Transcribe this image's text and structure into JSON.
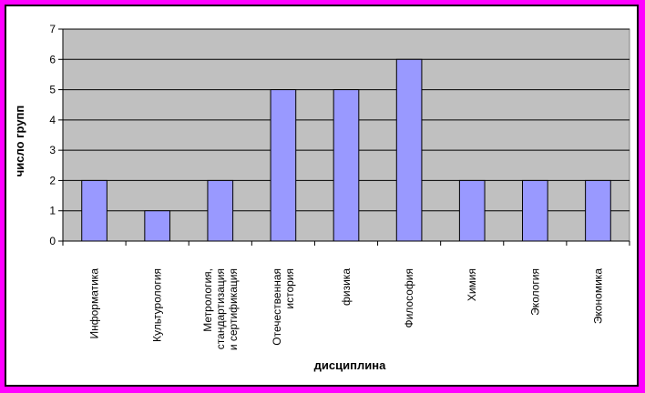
{
  "colors": {
    "outer_border": "#ff00ff",
    "plot_background": "#c0c0c0",
    "bar_fill": "#9999ff",
    "bar_stroke": "#000000"
  },
  "chart_data": {
    "type": "bar",
    "title": "",
    "xlabel": "дисциплина",
    "ylabel": "число групп",
    "ylim": [
      0,
      7
    ],
    "yticks": [
      0,
      1,
      2,
      3,
      4,
      5,
      6,
      7
    ],
    "grid": true,
    "legend": "none",
    "categories": [
      [
        "Информатика"
      ],
      [
        "Культурология"
      ],
      [
        "Метрология,",
        "стандартизация",
        "и сертификация"
      ],
      [
        "Отечественная",
        "история"
      ],
      [
        "физика"
      ],
      [
        "Философия"
      ],
      [
        "Химия"
      ],
      [
        "Экология"
      ],
      [
        "Экономика"
      ]
    ],
    "values": [
      2,
      1,
      2,
      5,
      5,
      6,
      2,
      2,
      2
    ]
  }
}
